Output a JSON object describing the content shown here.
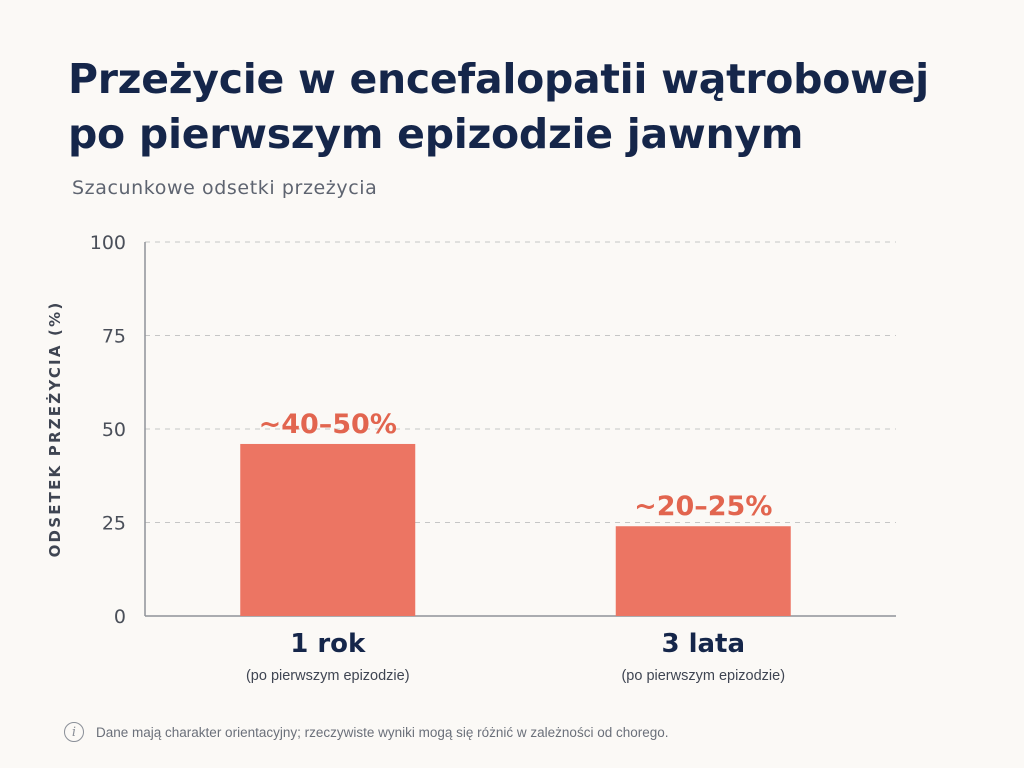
{
  "chart_data": {
    "type": "bar",
    "title": "Przeżycie w encefalopatii wątrobowej po pierwszym epizodzie jawnym",
    "subtitle": "Szacunkowe odsetki przeżycia",
    "ylabel": "ODSETEK PRZEŻYCIA (%)",
    "ylim": [
      0,
      100
    ],
    "yticks": [
      0,
      25,
      50,
      75,
      100
    ],
    "grid": true,
    "categories": [
      "1 rok",
      "3 lata"
    ],
    "category_sublabels": [
      "(po pierwszym epizodzie)",
      "(po pierwszym epizodzie)"
    ],
    "values": [
      46,
      24
    ],
    "data_labels": [
      "~40–50%",
      "~20–25%"
    ],
    "bar_color": "#ec7563",
    "label_color": "#e2654f"
  },
  "footer": {
    "icon": "info-icon",
    "text": "Dane mają charakter orientacyjny; rzeczywiste wyniki mogą się różnić w zależności od chorego."
  }
}
